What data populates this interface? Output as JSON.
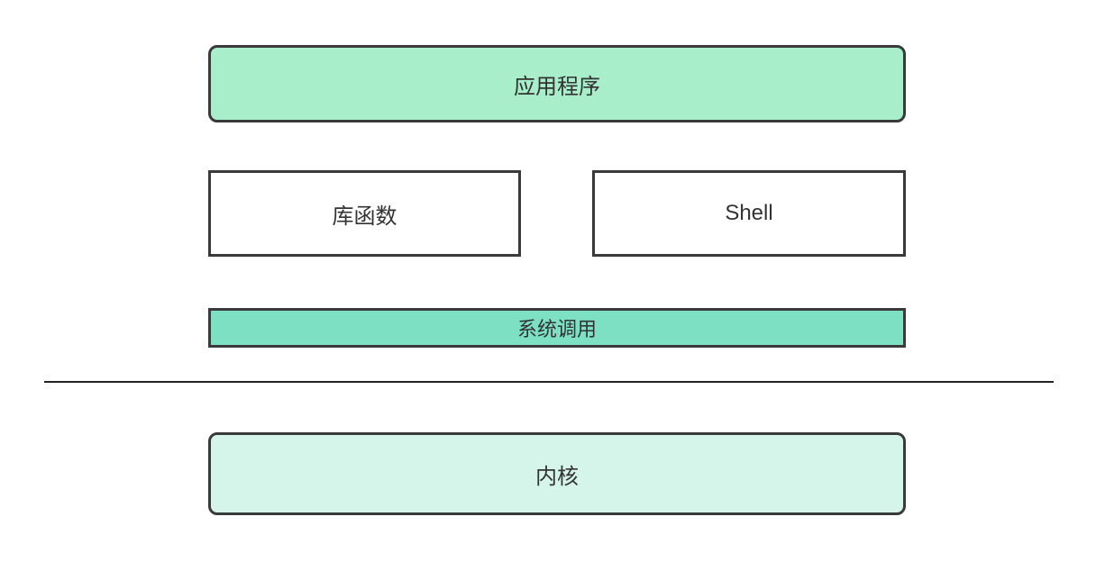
{
  "diagram": {
    "type": "layered-architecture",
    "background_color": "#ffffff",
    "border_color": "#3a3a3a",
    "border_width": 3,
    "text_color": "#333333",
    "font_size": 24,
    "layers": {
      "application": {
        "label": "应用程序",
        "background_color": "#a8eecb",
        "rounded": true
      },
      "library": {
        "label": "库函数",
        "background_color": "#ffffff",
        "rounded": false
      },
      "shell": {
        "label": "Shell",
        "background_color": "#ffffff",
        "rounded": false
      },
      "syscall": {
        "label": "系统调用",
        "background_color": "#7ee0c3",
        "rounded": false,
        "font_size": 22
      },
      "kernel": {
        "label": "内核",
        "background_color": "#d6f5ea",
        "rounded": true
      }
    },
    "divider_color": "#222222"
  }
}
